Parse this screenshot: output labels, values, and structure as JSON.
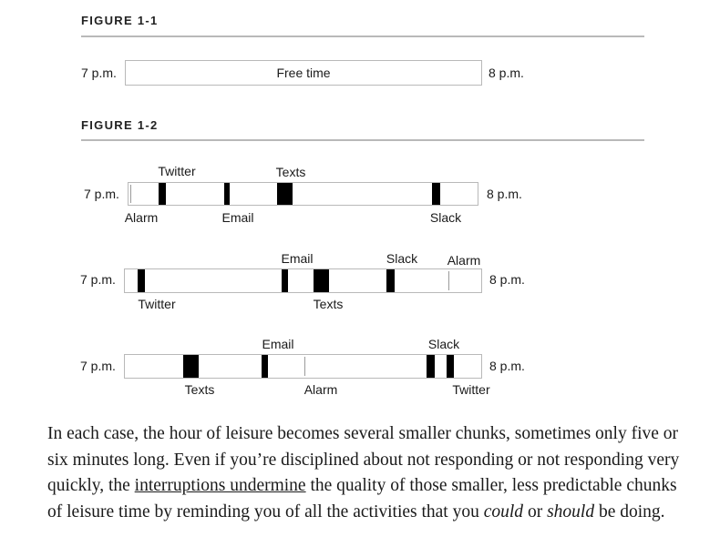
{
  "figure1": {
    "title": "FIGURE 1-1",
    "start": "7 p.m.",
    "end": "8 p.m.",
    "bar_label": "Free time"
  },
  "figure2": {
    "title": "FIGURE 1-2",
    "timelines": [
      {
        "start": "7 p.m.",
        "end": "8 p.m.",
        "events": [
          {
            "label": "Alarm",
            "position": "below",
            "mark": "line"
          },
          {
            "label": "Twitter",
            "position": "above",
            "mark": "block"
          },
          {
            "label": "Email",
            "position": "below",
            "mark": "block"
          },
          {
            "label": "Texts",
            "position": "above",
            "mark": "block"
          },
          {
            "label": "Slack",
            "position": "below",
            "mark": "block"
          }
        ]
      },
      {
        "start": "7 p.m.",
        "end": "8 p.m.",
        "events": [
          {
            "label": "Twitter",
            "position": "below",
            "mark": "block"
          },
          {
            "label": "Email",
            "position": "above",
            "mark": "block"
          },
          {
            "label": "Texts",
            "position": "below",
            "mark": "block"
          },
          {
            "label": "Slack",
            "position": "above",
            "mark": "block"
          },
          {
            "label": "Alarm",
            "position": "above",
            "mark": "line"
          }
        ]
      },
      {
        "start": "7 p.m.",
        "end": "8 p.m.",
        "events": [
          {
            "label": "Texts",
            "position": "below",
            "mark": "block"
          },
          {
            "label": "Email",
            "position": "above",
            "mark": "block"
          },
          {
            "label": "Alarm",
            "position": "below",
            "mark": "line"
          },
          {
            "label": "Slack",
            "position": "above",
            "mark": "block"
          },
          {
            "label": "Twitter",
            "position": "below",
            "mark": "block"
          }
        ]
      }
    ]
  },
  "paragraph": {
    "part1": "In each case, the hour of leisure becomes several smaller chunks, sometimes only five or six minutes long. Even if you’re disciplined about not responding or not responding very quickly, the ",
    "underlined": "interruptions undermine",
    "part2": " the quality of those smaller, less predictable chunks of leisure time by reminding you of all the activities that you ",
    "em1": "could",
    "part3": " or ",
    "em2": "should",
    "part4": " be doing."
  }
}
